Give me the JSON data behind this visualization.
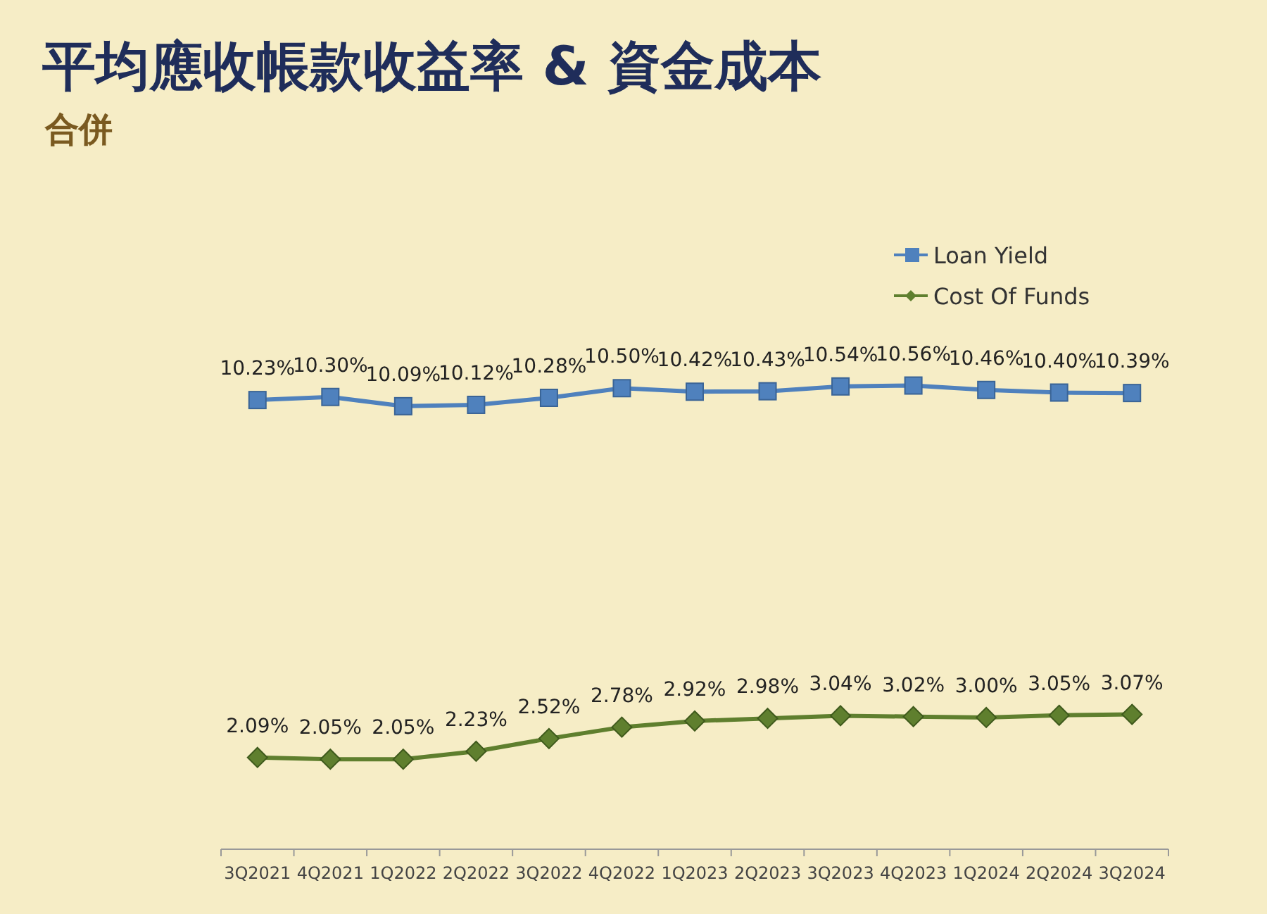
{
  "chart_data": {
    "type": "line",
    "title": "平均應收帳款收益率 & 資金成本",
    "subtitle": "合併",
    "categories": [
      "3Q2021",
      "4Q2021",
      "1Q2022",
      "2Q2022",
      "3Q2022",
      "4Q2022",
      "1Q2023",
      "2Q2023",
      "3Q2023",
      "4Q2023",
      "1Q2024",
      "2Q2024",
      "3Q2024"
    ],
    "tick_labels": "x",
    "legend": "top right",
    "series": [
      {
        "name": "Loan Yield",
        "color": "#4f81bd",
        "marker": "square",
        "values": [
          10.23,
          10.3,
          10.09,
          10.12,
          10.28,
          10.5,
          10.42,
          10.43,
          10.54,
          10.56,
          10.46,
          10.4,
          10.39
        ],
        "value_labels": [
          "10.23%",
          "10.30%",
          "10.09%",
          "10.12%",
          "10.28%",
          "10.50%",
          "10.42%",
          "10.43%",
          "10.54%",
          "10.56%",
          "10.46%",
          "10.40%",
          "10.39%"
        ]
      },
      {
        "name": "Cost Of Funds",
        "color": "#5f7f2e",
        "marker": "diamond",
        "values": [
          2.09,
          2.05,
          2.05,
          2.23,
          2.52,
          2.78,
          2.92,
          2.98,
          3.04,
          3.02,
          3.0,
          3.05,
          3.07
        ],
        "value_labels": [
          "2.09%",
          "2.05%",
          "2.05%",
          "2.23%",
          "2.52%",
          "2.78%",
          "2.92%",
          "2.98%",
          "3.04%",
          "3.02%",
          "3.00%",
          "3.05%",
          "3.07%"
        ]
      }
    ]
  }
}
